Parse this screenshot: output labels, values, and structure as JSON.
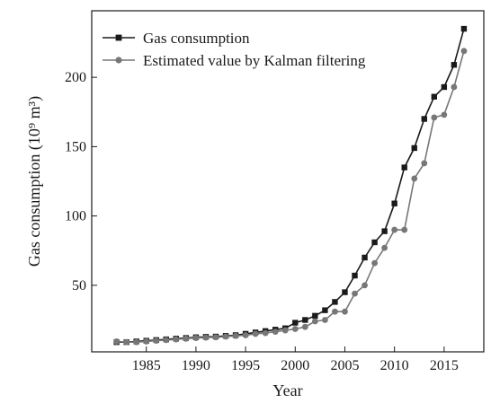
{
  "chart_data": {
    "type": "line",
    "title": "",
    "xlabel": "Year",
    "ylabel": "Gas consumption (10⁹ m³)",
    "xlim": [
      1979.5,
      2019
    ],
    "ylim": [
      2,
      248
    ],
    "xticks": [
      1985,
      1990,
      1995,
      2000,
      2005,
      2010,
      2015
    ],
    "yticks": [
      50,
      100,
      150,
      200
    ],
    "grid": false,
    "legend_position": "top-left",
    "x": [
      1982,
      1983,
      1984,
      1985,
      1986,
      1987,
      1988,
      1989,
      1990,
      1991,
      1992,
      1993,
      1994,
      1995,
      1996,
      1997,
      1998,
      1999,
      2000,
      2001,
      2002,
      2003,
      2004,
      2005,
      2006,
      2007,
      2008,
      2009,
      2010,
      2011,
      2012,
      2013,
      2014,
      2015,
      2016,
      2017
    ],
    "series": [
      {
        "name": "Gas consumption",
        "color": "#1a1a1a",
        "marker": "square",
        "values": [
          9.0,
          9.0,
          9.5,
          10.0,
          10.5,
          11.0,
          11.5,
          12.0,
          12.5,
          12.8,
          13.0,
          13.5,
          14.0,
          15.0,
          16.0,
          17.0,
          18.0,
          19.0,
          23.0,
          25.0,
          28.0,
          32.0,
          38.0,
          45.0,
          57.0,
          70.0,
          81.0,
          89.0,
          109.0,
          135.0,
          149.0,
          170.0,
          186.0,
          193.0,
          209.0,
          235.0
        ]
      },
      {
        "name": "Estimated value by Kalman filtering",
        "color": "#777777",
        "marker": "circle",
        "values": [
          9.5,
          9.0,
          9.0,
          9.5,
          10.0,
          10.5,
          11.0,
          11.5,
          12.0,
          12.3,
          12.5,
          13.0,
          13.5,
          14.0,
          15.0,
          15.5,
          16.5,
          17.5,
          18.5,
          20.0,
          24.0,
          25.0,
          31.0,
          31.0,
          44.0,
          50.0,
          66.0,
          77.0,
          90.0,
          90.0,
          127.0,
          138.0,
          171.0,
          173.0,
          193.0,
          219.0
        ]
      }
    ]
  }
}
